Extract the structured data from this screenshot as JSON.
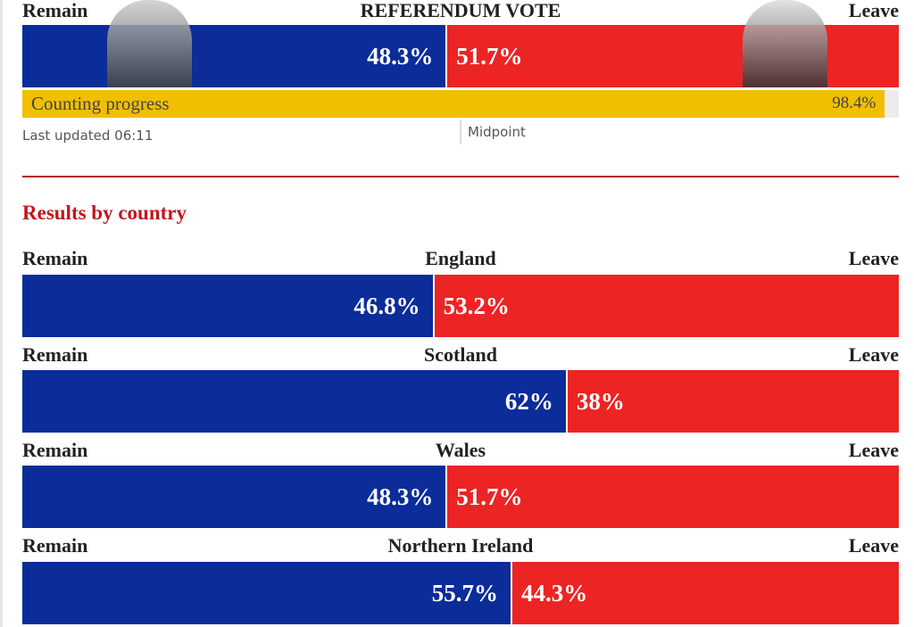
{
  "header": {
    "remain_label": "Remain",
    "title": "REFERENDUM VOTE",
    "leave_label": "Leave",
    "values": [
      48.3,
      51.7
    ],
    "value_labels": [
      "48.3%",
      "51.7%"
    ],
    "progress": {
      "label": "Counting progress",
      "value": 98.4,
      "value_label": "98.4%"
    },
    "last_updated": "Last updated 06:11",
    "midpoint": "Midpoint"
  },
  "xlim": [
    0,
    100
  ],
  "colors": {
    "remain": "#0b2c99",
    "leave": "#ec2424",
    "progress": "#f1bf00"
  },
  "section_title": "Results by country",
  "countries": [
    {
      "remain_label": "Remain",
      "name": "England",
      "leave_label": "Leave",
      "values": [
        46.8,
        53.2
      ],
      "value_labels": [
        "46.8%",
        "53.2%"
      ]
    },
    {
      "remain_label": "Remain",
      "name": "Scotland",
      "leave_label": "Leave",
      "values": [
        62,
        38
      ],
      "value_labels": [
        "62%",
        "38%"
      ]
    },
    {
      "remain_label": "Remain",
      "name": "Wales",
      "leave_label": "Leave",
      "values": [
        48.3,
        51.7
      ],
      "value_labels": [
        "48.3%",
        "51.7%"
      ]
    },
    {
      "remain_label": "Remain",
      "name": "Northern Ireland",
      "leave_label": "Leave",
      "values": [
        55.7,
        44.3
      ],
      "value_labels": [
        "55.7%",
        "44.3%"
      ]
    }
  ]
}
